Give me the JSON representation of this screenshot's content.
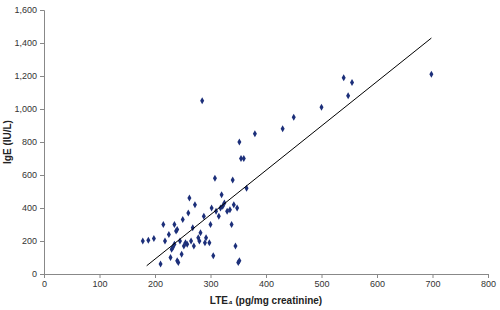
{
  "chart_data": {
    "type": "scatter",
    "x_label": "LTE₄ (pg/mg creatinine)",
    "y_label": "IgE (IU/L)",
    "xlim": [
      0,
      800
    ],
    "xticks": [
      0,
      100,
      200,
      300,
      400,
      500,
      600,
      700,
      800
    ],
    "ylim": [
      0,
      1600
    ],
    "yticks": [
      0,
      200,
      400,
      600,
      800,
      {
        "value": 1000,
        "label": "1,000"
      },
      {
        "value": 1200,
        "label": "1,200"
      },
      {
        "value": 1400,
        "label": "1,400"
      },
      {
        "value": 1600,
        "label": "1,600"
      }
    ],
    "grid": false,
    "series": [
      {
        "type": "scatter",
        "color": "#1c2f7a",
        "marker": "diamond",
        "x": [
          178,
          188,
          198,
          210,
          215,
          218,
          225,
          228,
          230,
          232,
          235,
          235,
          238,
          240,
          240,
          242,
          245,
          248,
          250,
          252,
          255,
          258,
          260,
          262,
          265,
          268,
          270,
          272,
          278,
          280,
          282,
          285,
          288,
          290,
          292,
          298,
          300,
          302,
          305,
          308,
          310,
          315,
          318,
          320,
          322,
          325,
          330,
          335,
          338,
          340,
          342,
          345,
          348,
          350,
          352,
          352,
          355,
          360,
          365,
          380,
          430,
          450,
          500,
          540,
          548,
          555,
          698
        ],
        "values": [
          200,
          205,
          215,
          60,
          300,
          200,
          240,
          100,
          150,
          160,
          180,
          300,
          260,
          270,
          80,
          70,
          200,
          120,
          330,
          170,
          190,
          180,
          370,
          460,
          200,
          280,
          170,
          420,
          220,
          200,
          250,
          1050,
          350,
          190,
          220,
          190,
          300,
          400,
          110,
          580,
          380,
          350,
          400,
          480,
          410,
          430,
          380,
          390,
          300,
          570,
          420,
          170,
          400,
          70,
          80,
          800,
          700,
          700,
          520,
          850,
          880,
          950,
          1010,
          1190,
          1080,
          1160,
          1210
        ]
      },
      {
        "type": "line",
        "color": "#000000",
        "line_style": "solid",
        "x": [
          185,
          698
        ],
        "values": [
          50,
          1430
        ]
      }
    ]
  }
}
